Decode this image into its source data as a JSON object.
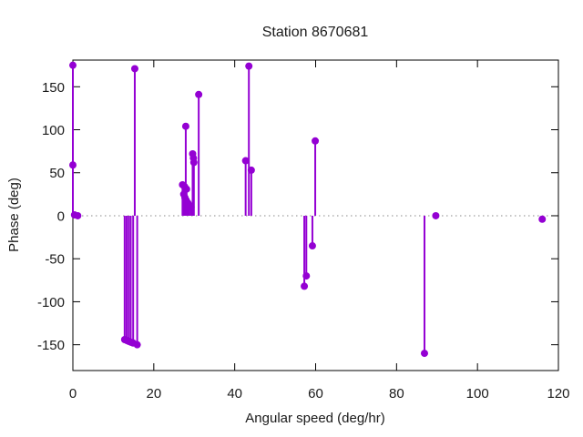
{
  "title": "Station 8670681",
  "colors": {
    "stem": "#9400d3",
    "zero_line": "#8a8a8a",
    "axis": "#000000",
    "background": "#ffffff",
    "text": "#1a1a1a"
  },
  "chart_data": {
    "type": "stem",
    "title": "Station 8670681",
    "xlabel": "Angular speed (deg/hr)",
    "ylabel": "Phase (deg)",
    "xlim": [
      0,
      120
    ],
    "ylim": [
      -180,
      181
    ],
    "xticks": [
      0,
      20,
      40,
      60,
      80,
      100,
      120
    ],
    "yticks": [
      -150,
      -100,
      -50,
      0,
      50,
      100,
      150
    ],
    "grid": false,
    "zero_line_dotted": true,
    "legend": "none",
    "points": [
      {
        "x": 0.0,
        "y": 175
      },
      {
        "x": 0.0,
        "y": 59
      },
      {
        "x": 0.4,
        "y": 1
      },
      {
        "x": 1.2,
        "y": 0
      },
      {
        "x": 12.8,
        "y": -144
      },
      {
        "x": 13.3,
        "y": -145
      },
      {
        "x": 13.8,
        "y": -146
      },
      {
        "x": 14.3,
        "y": -147
      },
      {
        "x": 14.9,
        "y": -148
      },
      {
        "x": 15.3,
        "y": 171
      },
      {
        "x": 15.9,
        "y": -150
      },
      {
        "x": 27.1,
        "y": 36
      },
      {
        "x": 27.4,
        "y": 25
      },
      {
        "x": 27.6,
        "y": 34
      },
      {
        "x": 27.7,
        "y": 21
      },
      {
        "x": 27.9,
        "y": 104
      },
      {
        "x": 28.0,
        "y": 18
      },
      {
        "x": 28.1,
        "y": 31
      },
      {
        "x": 28.4,
        "y": 15
      },
      {
        "x": 28.8,
        "y": 12
      },
      {
        "x": 29.2,
        "y": 10
      },
      {
        "x": 29.6,
        "y": 72
      },
      {
        "x": 29.8,
        "y": 67
      },
      {
        "x": 29.9,
        "y": 62
      },
      {
        "x": 31.1,
        "y": 141
      },
      {
        "x": 42.7,
        "y": 64
      },
      {
        "x": 43.5,
        "y": 174
      },
      {
        "x": 44.1,
        "y": 53
      },
      {
        "x": 57.2,
        "y": -82
      },
      {
        "x": 57.7,
        "y": -70
      },
      {
        "x": 59.2,
        "y": -35
      },
      {
        "x": 59.9,
        "y": 87
      },
      {
        "x": 86.9,
        "y": -160
      },
      {
        "x": 89.7,
        "y": 0
      },
      {
        "x": 116.0,
        "y": -4
      }
    ]
  }
}
